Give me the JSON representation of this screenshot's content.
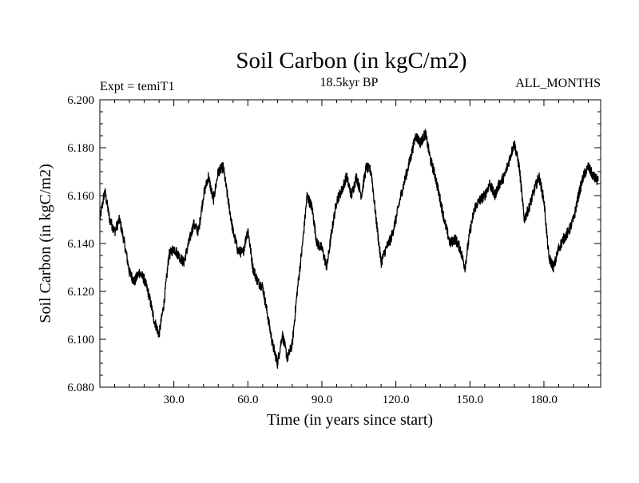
{
  "chart_data": {
    "type": "line",
    "title": "Soil Carbon (in kgC/m2)",
    "subtitle_left": "Expt = temiT1",
    "subtitle_center": "18.5kyr BP",
    "subtitle_right": "ALL_MONTHS",
    "xlabel": "Time (in years since start)",
    "ylabel": "Soil Carbon (in kgC/m2)",
    "xlim": [
      0,
      203
    ],
    "ylim": [
      6.08,
      6.2
    ],
    "x_ticks": [
      30,
      60,
      90,
      120,
      150,
      180
    ],
    "x_tick_labels": [
      "30.0",
      "60.0",
      "90.0",
      "120.0",
      "150.0",
      "180.0"
    ],
    "y_ticks": [
      6.08,
      6.1,
      6.12,
      6.14,
      6.16,
      6.18,
      6.2
    ],
    "y_tick_labels": [
      "6.080",
      "6.100",
      "6.120",
      "6.140",
      "6.160",
      "6.180",
      "6.200"
    ],
    "grid": false,
    "series": [
      {
        "name": "Soil Carbon",
        "color": "#000000",
        "x": [
          0,
          2,
          4,
          6,
          8,
          10,
          12,
          14,
          16,
          18,
          20,
          22,
          24,
          26,
          28,
          30,
          32,
          34,
          36,
          38,
          40,
          42,
          44,
          46,
          48,
          50,
          52,
          54,
          56,
          58,
          60,
          62,
          64,
          66,
          68,
          70,
          72,
          74,
          76,
          78,
          80,
          82,
          84,
          86,
          88,
          90,
          92,
          94,
          96,
          98,
          100,
          102,
          104,
          106,
          108,
          110,
          112,
          114,
          116,
          118,
          120,
          122,
          124,
          126,
          128,
          130,
          132,
          134,
          136,
          138,
          140,
          142,
          144,
          146,
          148,
          150,
          152,
          154,
          156,
          158,
          160,
          162,
          164,
          166,
          168,
          170,
          172,
          174,
          176,
          178,
          180,
          182,
          184,
          186,
          188,
          190,
          192,
          194,
          196,
          198,
          200,
          202
        ],
        "values": [
          6.15,
          6.162,
          6.15,
          6.145,
          6.15,
          6.14,
          6.128,
          6.124,
          6.128,
          6.125,
          6.118,
          6.108,
          6.102,
          6.115,
          6.135,
          6.138,
          6.135,
          6.132,
          6.14,
          6.148,
          6.145,
          6.16,
          6.168,
          6.158,
          6.17,
          6.172,
          6.158,
          6.145,
          6.137,
          6.136,
          6.146,
          6.13,
          6.124,
          6.122,
          6.11,
          6.098,
          6.09,
          6.102,
          6.092,
          6.098,
          6.12,
          6.138,
          6.16,
          6.155,
          6.14,
          6.138,
          6.13,
          6.145,
          6.158,
          6.162,
          6.168,
          6.16,
          6.168,
          6.16,
          6.172,
          6.17,
          6.15,
          6.132,
          6.138,
          6.142,
          6.15,
          6.16,
          6.168,
          6.176,
          6.185,
          6.182,
          6.186,
          6.175,
          6.168,
          6.158,
          6.148,
          6.14,
          6.142,
          6.138,
          6.13,
          6.145,
          6.155,
          6.158,
          6.16,
          6.165,
          6.16,
          6.165,
          6.168,
          6.175,
          6.182,
          6.172,
          6.15,
          6.155,
          6.162,
          6.168,
          6.158,
          6.134,
          6.13,
          6.138,
          6.142,
          6.145,
          6.15,
          6.16,
          6.168,
          6.172,
          6.168,
          6.166
        ]
      }
    ]
  }
}
